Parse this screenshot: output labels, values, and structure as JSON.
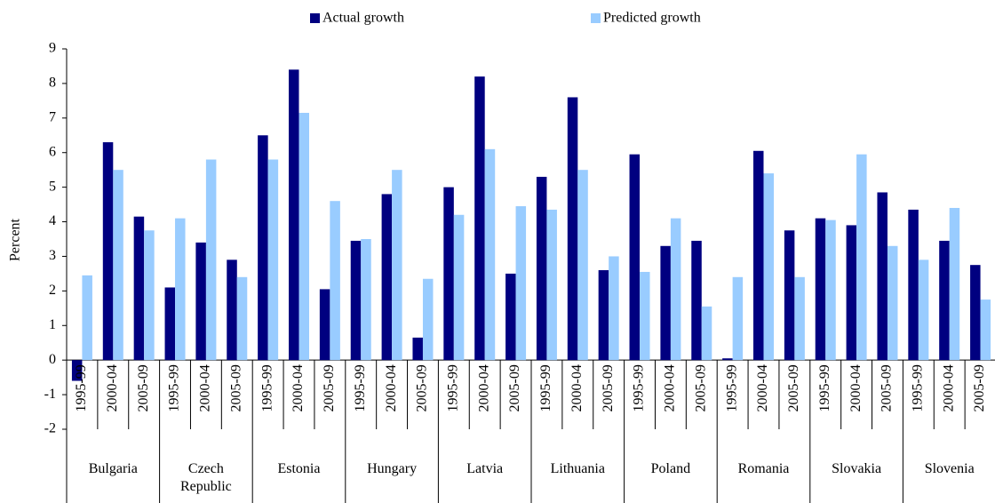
{
  "chart_data": {
    "type": "bar",
    "y_label": "Percent",
    "categories": [
      "1995-99",
      "2000-04",
      "2005-09",
      "1995-99",
      "2000-04",
      "2005-09",
      "1995-99",
      "2000-04",
      "2005-09",
      "1995-99",
      "2000-04",
      "2005-09",
      "1995-99",
      "2000-04",
      "2005-09",
      "1995-99",
      "2000-04",
      "2005-09",
      "1995-99",
      "2000-04",
      "2005-09",
      "1995-99",
      "2000-04",
      "2005-09",
      "1995-99",
      "2000-04",
      "2005-09",
      "1995-99",
      "2000-04",
      "2005-09"
    ],
    "groups": [
      "Bulgaria",
      "Czech Republic",
      "Estonia",
      "Hungary",
      "Latvia",
      "Lithuania",
      "Poland",
      "Romania",
      "Slovakia",
      "Slovenia"
    ],
    "series": [
      {
        "name": "Actual growth",
        "color": "#000080",
        "values": [
          -0.6,
          6.3,
          4.15,
          2.1,
          3.4,
          2.9,
          6.5,
          8.4,
          2.05,
          3.45,
          4.8,
          0.65,
          5.0,
          8.2,
          2.5,
          5.3,
          7.6,
          2.6,
          5.95,
          3.3,
          3.45,
          0.05,
          6.05,
          3.75,
          4.1,
          3.9,
          4.85,
          4.35,
          3.45,
          2.75
        ]
      },
      {
        "name": "Predicted growth",
        "color": "#99ccff",
        "values": [
          2.45,
          5.5,
          3.75,
          4.1,
          5.8,
          2.4,
          5.8,
          7.15,
          4.6,
          3.5,
          5.5,
          2.35,
          4.2,
          6.1,
          4.45,
          4.35,
          5.5,
          3.0,
          2.55,
          4.1,
          1.55,
          2.4,
          5.4,
          2.4,
          4.05,
          5.95,
          3.3,
          2.9,
          4.4,
          1.75
        ]
      }
    ],
    "ylim": [
      -2,
      9
    ],
    "yticks": [
      -2,
      -1,
      0,
      1,
      2,
      3,
      4,
      5,
      6,
      7,
      8,
      9
    ],
    "grid": false,
    "legend": "top"
  }
}
